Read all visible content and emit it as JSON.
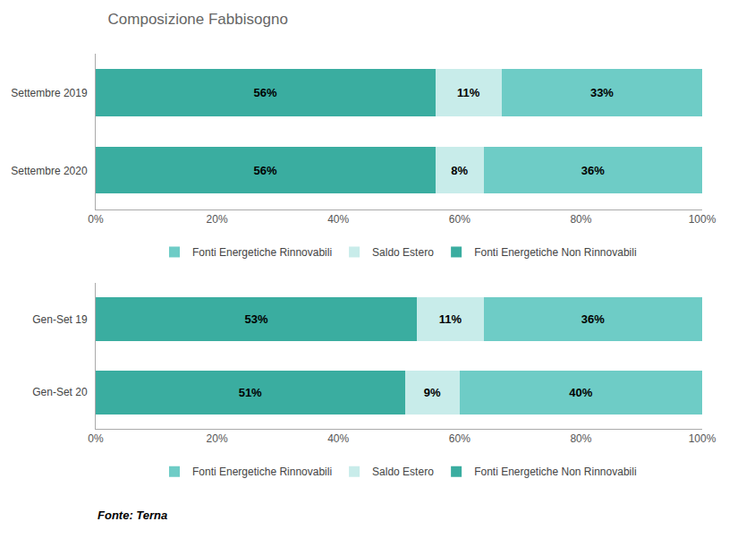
{
  "chart_data": [
    {
      "type": "bar",
      "title": "Composizione Fabbisogno",
      "orientation": "horizontal",
      "stacked": true,
      "data_labels": true,
      "legend": "bottom",
      "categories": [
        "Settembre 2020",
        "Settembre 2019"
      ],
      "series": [
        {
          "name": "Fonti Energetiche Non Rinnovabili",
          "color": "#3aada0",
          "values": [
            56,
            56
          ],
          "value_labels": [
            "56%",
            "56%"
          ]
        },
        {
          "name": "Saldo Estero",
          "color": "#c8ecea",
          "values": [
            8,
            11
          ],
          "value_labels": [
            "8%",
            "11%"
          ]
        },
        {
          "name": "Fonti Energetiche Rinnovabili",
          "color": "#6eccc6",
          "values": [
            36,
            33
          ],
          "value_labels": [
            "36%",
            "33%"
          ]
        }
      ],
      "xlim": [
        0,
        100
      ],
      "xticks": [
        {
          "value": 0,
          "label": "0%"
        },
        {
          "value": 20,
          "label": "20%"
        },
        {
          "value": 40,
          "label": "40%"
        },
        {
          "value": 60,
          "label": "60%"
        },
        {
          "value": 80,
          "label": "80%"
        },
        {
          "value": 100,
          "label": "100%"
        }
      ],
      "grid": false
    },
    {
      "type": "bar",
      "orientation": "horizontal",
      "stacked": true,
      "data_labels": true,
      "legend": "bottom",
      "annotations": [
        "Fonte: Terna"
      ],
      "categories": [
        "Gen-Set 20",
        "Gen-Set 19"
      ],
      "series": [
        {
          "name": "Fonti Energetiche Non Rinnovabili",
          "color": "#3aada0",
          "values": [
            51,
            53
          ],
          "value_labels": [
            "51%",
            "53%"
          ]
        },
        {
          "name": "Saldo Estero",
          "color": "#c8ecea",
          "values": [
            9,
            11
          ],
          "value_labels": [
            "9%",
            "11%"
          ]
        },
        {
          "name": "Fonti Energetiche Rinnovabili",
          "color": "#6eccc6",
          "values": [
            40,
            36
          ],
          "value_labels": [
            "40%",
            "36%"
          ]
        }
      ],
      "xlim": [
        0,
        100
      ],
      "xticks": [
        {
          "value": 0,
          "label": "0%"
        },
        {
          "value": 20,
          "label": "20%"
        },
        {
          "value": 40,
          "label": "40%"
        },
        {
          "value": 60,
          "label": "60%"
        },
        {
          "value": 80,
          "label": "80%"
        },
        {
          "value": 100,
          "label": "100%"
        }
      ],
      "grid": false
    }
  ]
}
